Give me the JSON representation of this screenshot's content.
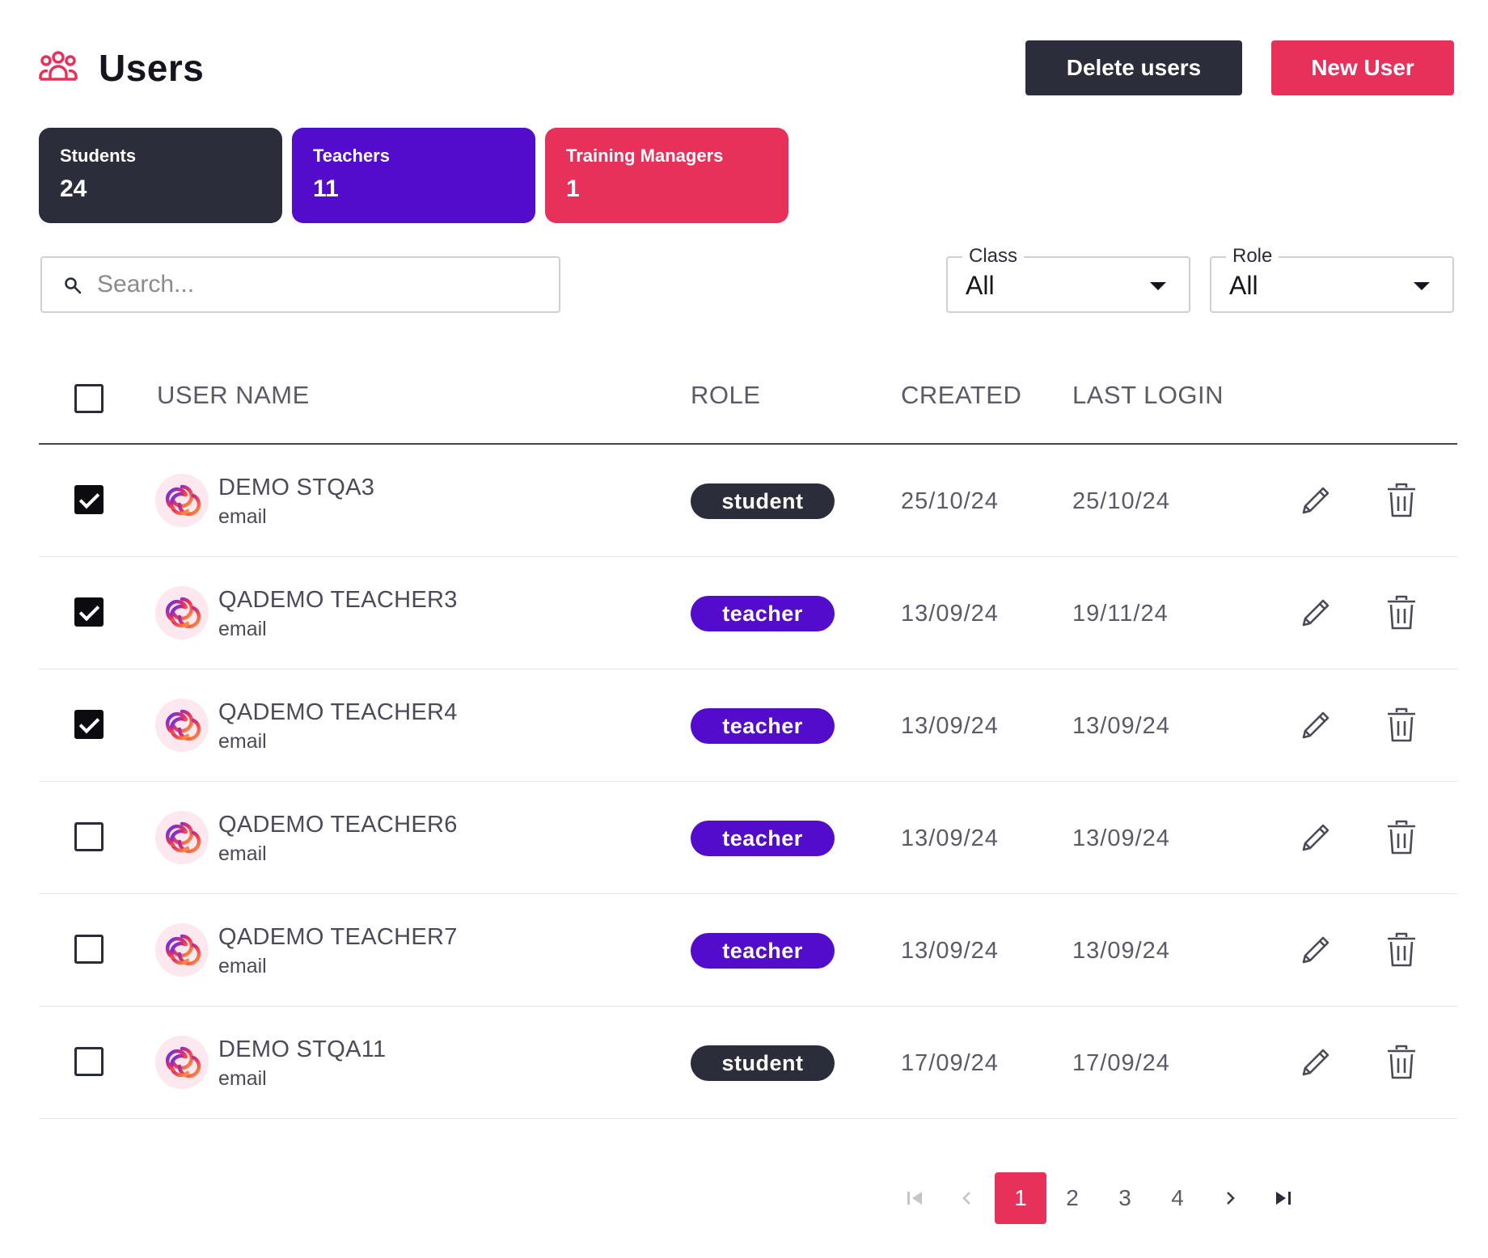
{
  "header": {
    "title": "Users",
    "icon": "users-group-icon",
    "delete_label": "Delete users",
    "new_label": "New User"
  },
  "stats": [
    {
      "label": "Students",
      "count": "24",
      "color": "#2b2d3b"
    },
    {
      "label": "Teachers",
      "count": "11",
      "color": "#530ccc"
    },
    {
      "label": "Training Managers",
      "count": "1",
      "color": "#e8315a"
    }
  ],
  "search": {
    "placeholder": "Search...",
    "value": ""
  },
  "filters": {
    "class": {
      "label": "Class",
      "value": "All"
    },
    "role": {
      "label": "Role",
      "value": "All"
    }
  },
  "table": {
    "headers": {
      "name": "USER NAME",
      "role": "ROLE",
      "created": "CREATED",
      "last_login": "LAST LOGIN"
    },
    "rows": [
      {
        "checked": true,
        "name": "DEMO STQA3",
        "email": "email",
        "role": "student",
        "created": "25/10/24",
        "last_login": "25/10/24"
      },
      {
        "checked": true,
        "name": "QADEMO TEACHER3",
        "email": "email",
        "role": "teacher",
        "created": "13/09/24",
        "last_login": "19/11/24"
      },
      {
        "checked": true,
        "name": "QADEMO TEACHER4",
        "email": "email",
        "role": "teacher",
        "created": "13/09/24",
        "last_login": "13/09/24"
      },
      {
        "checked": false,
        "name": "QADEMO TEACHER6",
        "email": "email",
        "role": "teacher",
        "created": "13/09/24",
        "last_login": "13/09/24"
      },
      {
        "checked": false,
        "name": "QADEMO TEACHER7",
        "email": "email",
        "role": "teacher",
        "created": "13/09/24",
        "last_login": "13/09/24"
      },
      {
        "checked": false,
        "name": "DEMO STQA11",
        "email": "email",
        "role": "student",
        "created": "17/09/24",
        "last_login": "17/09/24"
      }
    ]
  },
  "pagination": {
    "pages": [
      "1",
      "2",
      "3",
      "4"
    ],
    "current": "1"
  },
  "colors": {
    "accent": "#e8315a",
    "dark": "#2b2d3b",
    "purple": "#530ccc"
  }
}
